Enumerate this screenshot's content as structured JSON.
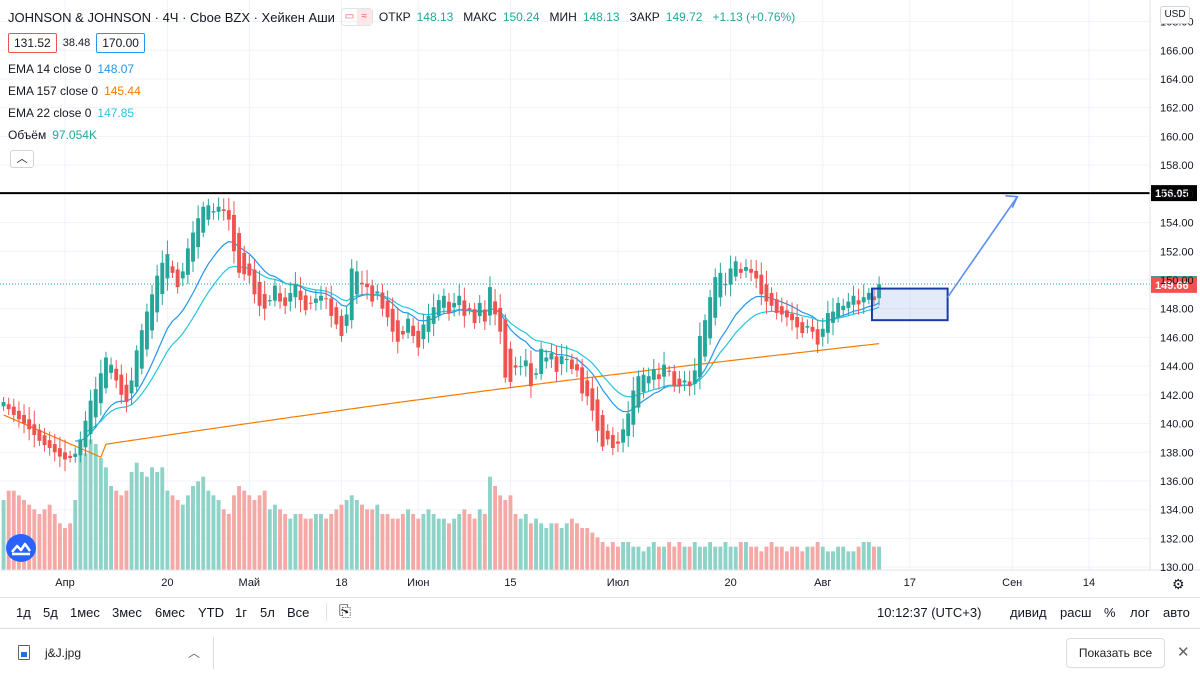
{
  "header": {
    "symbol": "JOHNSON & JOHNSON · 4Ч · Cboe BZX · Хейкен Аши",
    "open_label": "ОТКР",
    "open": "148.13",
    "high_label": "МАКС",
    "high": "150.24",
    "low_label": "МИН",
    "low": "148.13",
    "close_label": "ЗАКР",
    "close": "149.72",
    "change": "+1.13 (+0.76%)",
    "bid": "131.52",
    "spread": "38.48",
    "ask": "170.00",
    "currency": "USD"
  },
  "indicators": [
    {
      "label": "EMA 14 close 0",
      "value": "148.07",
      "color": "#2196f3"
    },
    {
      "label": "EMA 157 close 0",
      "value": "145.44",
      "color": "#f57c00"
    },
    {
      "label": "EMA 22 close 0",
      "value": "147.85",
      "color": "#26c6da"
    },
    {
      "label": "Объём",
      "value": "97.054K",
      "color": "#26a69a"
    }
  ],
  "chart_data": {
    "type": "candlestick",
    "ylim": [
      129.8,
      169.5
    ],
    "y_ticks": [
      "130.00",
      "132.00",
      "134.00",
      "136.00",
      "138.00",
      "140.00",
      "142.00",
      "144.00",
      "146.00",
      "148.00",
      "150.00",
      "152.00",
      "154.00",
      "156.00",
      "158.00",
      "160.00",
      "162.00",
      "164.00",
      "166.00",
      "168.00"
    ],
    "x_ticks": [
      {
        "label": "Апр",
        "bar": 12
      },
      {
        "label": "20",
        "bar": 32
      },
      {
        "label": "Май",
        "bar": 48
      },
      {
        "label": "18",
        "bar": 66
      },
      {
        "label": "Июн",
        "bar": 81
      },
      {
        "label": "15",
        "bar": 99
      },
      {
        "label": "Июл",
        "bar": 120
      },
      {
        "label": "20",
        "bar": 142
      },
      {
        "label": "Авг",
        "bar": 160
      },
      {
        "label": "17",
        "bar": 177
      },
      {
        "label": "Сен",
        "bar": 197
      },
      {
        "label": "14",
        "bar": 212
      }
    ],
    "bar_count_visible": 220,
    "resistance_level": "156.05",
    "last_price": "149.72",
    "ema_label": "149.66",
    "colors": {
      "up": "#26a69a",
      "down": "#ef5350",
      "ema14": "#2196f3",
      "ema157": "#f57c00",
      "ema22": "#26c6da",
      "resistance": "#000000",
      "arrow": "#5b8ff0",
      "box": "#1a3aa8"
    },
    "candles_close": [
      141.5,
      141.0,
      140.6,
      140.3,
      140.0,
      139.6,
      139.2,
      138.8,
      138.5,
      138.3,
      138.0,
      137.7,
      137.5,
      137.6,
      137.9,
      138.9,
      140.2,
      141.6,
      142.4,
      143.5,
      144.6,
      144.1,
      143.0,
      142.0,
      141.5,
      143.0,
      145.1,
      146.5,
      147.8,
      149.0,
      150.3,
      151.2,
      151.8,
      150.5,
      149.5,
      150.6,
      152.2,
      153.3,
      154.3,
      155.1,
      155.2,
      154.8,
      155.1,
      154.8,
      154.2,
      152.0,
      150.5,
      150.4,
      150.3,
      149.0,
      148.2,
      148.0,
      148.6,
      149.6,
      148.5,
      148.2,
      149.1,
      149.7,
      148.6,
      147.9,
      148.4,
      148.7,
      148.9,
      148.7,
      147.5,
      146.9,
      146.1,
      147.6,
      150.8,
      150.6,
      149.7,
      149.5,
      148.5,
      149.2,
      148.0,
      147.4,
      146.4,
      145.7,
      146.2,
      147.3,
      146.1,
      145.3,
      146.9,
      147.5,
      148.1,
      148.6,
      148.9,
      147.7,
      148.4,
      148.9,
      147.5,
      147.9,
      147.0,
      148.4,
      147.1,
      149.5,
      147.6,
      146.4,
      143.2,
      142.9,
      143.9,
      144.0,
      144.4,
      142.6,
      143.5,
      145.2,
      144.6,
      144.9,
      143.6,
      144.7,
      144.5,
      143.8,
      143.7,
      142.1,
      141.9,
      140.9,
      139.5,
      138.4,
      138.9,
      138.3,
      138.6,
      139.6,
      140.7,
      142.3,
      143.3,
      143.4,
      143.3,
      143.8,
      143.1,
      144.1,
      143.6,
      142.6,
      142.6,
      143.0,
      142.6,
      143.7,
      146.1,
      147.2,
      148.8,
      150.2,
      150.5,
      149.7,
      150.8,
      151.3,
      150.5,
      150.9,
      150.5,
      150.1,
      149.0,
      148.5,
      148.2,
      147.7,
      147.6,
      147.4,
      147.2,
      146.7,
      146.3,
      146.8,
      146.4,
      145.5,
      146.6,
      147.7,
      147.8,
      148.4,
      148.2,
      148.5,
      148.9,
      148.3,
      148.8,
      149.1,
      148.6,
      149.7
    ],
    "volume": [
      15,
      17,
      17,
      16,
      15,
      14,
      13,
      12,
      13,
      14,
      12,
      10,
      9,
      10,
      15,
      26,
      25,
      28,
      27,
      24,
      22,
      18,
      17,
      16,
      17,
      21,
      23,
      21,
      20,
      22,
      21,
      22,
      17,
      16,
      15,
      14,
      16,
      18,
      19,
      20,
      17,
      16,
      15,
      13,
      12,
      16,
      18,
      17,
      16,
      15,
      16,
      17,
      13,
      14,
      13,
      12,
      11,
      12,
      12,
      11,
      11,
      12,
      12,
      11,
      12,
      13,
      14,
      15,
      16,
      15,
      14,
      13,
      13,
      14,
      12,
      12,
      11,
      11,
      12,
      13,
      12,
      11,
      12,
      13,
      12,
      11,
      11,
      10,
      11,
      12,
      13,
      12,
      11,
      13,
      12,
      20,
      18,
      16,
      15,
      16,
      12,
      11,
      12,
      10,
      11,
      10,
      9,
      10,
      10,
      9,
      10,
      11,
      10,
      9,
      9,
      8,
      7,
      6,
      5,
      6,
      5,
      6,
      6,
      5,
      5,
      4,
      5,
      6,
      5,
      5,
      6,
      5,
      6,
      5,
      5,
      6,
      5,
      5,
      6,
      5,
      5,
      6,
      5,
      5,
      6,
      6,
      5,
      5,
      4,
      5,
      6,
      5,
      5,
      4,
      5,
      5,
      4,
      5,
      5,
      6,
      5,
      4,
      4,
      5,
      5,
      4,
      4,
      5,
      6,
      6,
      5,
      5,
      5,
      6,
      7
    ]
  },
  "toolbar": {
    "ranges": [
      "1д",
      "5д",
      "1мес",
      "3мес",
      "6мес",
      "YTD",
      "1г",
      "5л",
      "Все"
    ],
    "time": "10:12:37 (UTC+3)",
    "options": [
      "дивид",
      "расш",
      "%",
      "лог",
      "авто"
    ]
  },
  "download": {
    "filename": "j&J.jpg",
    "show_all": "Показать все"
  }
}
